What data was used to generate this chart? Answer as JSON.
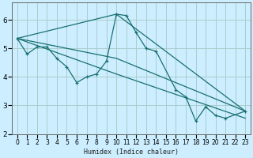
{
  "xlabel": "Humidex (Indice chaleur)",
  "background_color": "#cceeff",
  "grid_color": "#aacccc",
  "line_color": "#1a7070",
  "xlim": [
    -0.5,
    23.5
  ],
  "ylim": [
    2,
    6.6
  ],
  "yticks": [
    2,
    3,
    4,
    5,
    6
  ],
  "xticks": [
    0,
    1,
    2,
    3,
    4,
    5,
    6,
    7,
    8,
    9,
    10,
    11,
    12,
    13,
    14,
    15,
    16,
    17,
    18,
    19,
    20,
    21,
    22,
    23
  ],
  "main_line": {
    "x": [
      0,
      1,
      2,
      3,
      4,
      5,
      6,
      7,
      8,
      9,
      10,
      11,
      12,
      13,
      14,
      16,
      17,
      18,
      19,
      20,
      21,
      23
    ],
    "y": [
      5.35,
      4.8,
      5.05,
      5.05,
      4.65,
      4.35,
      3.8,
      4.0,
      4.1,
      4.55,
      6.2,
      6.15,
      5.55,
      5.0,
      4.9,
      3.55,
      3.3,
      2.45,
      2.95,
      2.65,
      2.55,
      2.8
    ]
  },
  "straight_lines": [
    {
      "x": [
        0,
        10,
        23
      ],
      "y": [
        5.35,
        6.2,
        2.8
      ]
    },
    {
      "x": [
        0,
        10,
        23
      ],
      "y": [
        5.35,
        4.1,
        2.55
      ]
    },
    {
      "x": [
        0,
        10,
        23
      ],
      "y": [
        5.35,
        4.65,
        2.8
      ]
    }
  ]
}
